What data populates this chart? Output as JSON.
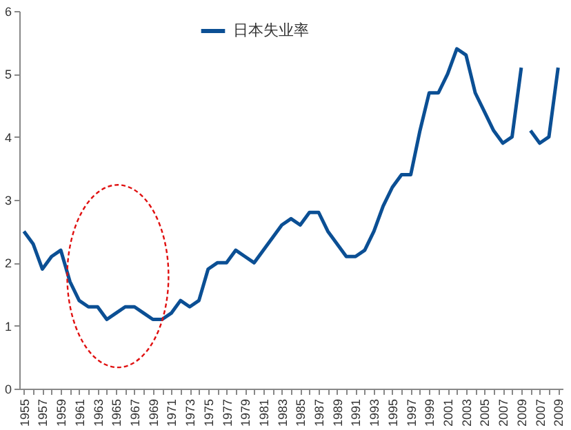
{
  "chart_data": {
    "type": "line",
    "categories": [
      "1955",
      null,
      "1957",
      null,
      "1959",
      null,
      "1961",
      null,
      "1963",
      null,
      "1965",
      null,
      "1967",
      null,
      "1969",
      null,
      "1971",
      null,
      "1973",
      null,
      "1975",
      null,
      "1977",
      null,
      "1979",
      null,
      "1981",
      null,
      "1983",
      null,
      "1985",
      null,
      "1987",
      null,
      "1989",
      null,
      "1991",
      null,
      "1993",
      null,
      "1995",
      null,
      "1997",
      null,
      "1999",
      null,
      "2001",
      null,
      "2003",
      null,
      "2005",
      null,
      "2007",
      null,
      "2009",
      null,
      "2007",
      null,
      "2009"
    ],
    "series": [
      {
        "name": "日本失业率",
        "color": "#0b4f94",
        "values": [
          2.5,
          2.3,
          1.9,
          2.1,
          2.2,
          1.7,
          1.4,
          1.3,
          1.3,
          1.1,
          1.2,
          1.3,
          1.3,
          1.2,
          1.1,
          1.1,
          1.2,
          1.4,
          1.3,
          1.4,
          1.9,
          2.0,
          2.0,
          2.2,
          2.1,
          2.0,
          2.2,
          2.4,
          2.6,
          2.7,
          2.6,
          2.8,
          2.8,
          2.5,
          2.3,
          2.1,
          2.1,
          2.2,
          2.5,
          2.9,
          3.2,
          3.4,
          3.4,
          4.1,
          4.7,
          4.7,
          5.0,
          5.4,
          5.3,
          4.7,
          4.4,
          4.1,
          3.9,
          4.0,
          5.1,
          null,
          null,
          null,
          null
        ]
      },
      {
        "color": "#0b4f94",
        "values": [
          null,
          null,
          null,
          null,
          null,
          null,
          null,
          null,
          null,
          null,
          null,
          null,
          null,
          null,
          null,
          null,
          null,
          null,
          null,
          null,
          null,
          null,
          null,
          null,
          null,
          null,
          null,
          null,
          null,
          null,
          null,
          null,
          null,
          null,
          null,
          null,
          null,
          null,
          null,
          null,
          null,
          null,
          null,
          null,
          null,
          null,
          null,
          null,
          null,
          null,
          null,
          null,
          null,
          null,
          null,
          4.1,
          3.9,
          4.0,
          5.1
        ]
      }
    ],
    "ylim": [
      0,
      6
    ],
    "yticks": [
      0,
      1,
      2,
      3,
      4,
      5,
      6
    ],
    "grid": false,
    "legend": "top",
    "marker": "none",
    "line_style": "solid"
  }
}
